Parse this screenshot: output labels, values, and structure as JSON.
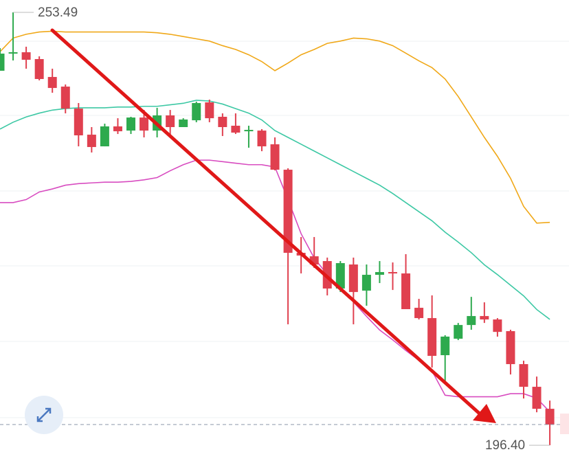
{
  "chart_data": {
    "type": "candlestick",
    "categories": [
      null,
      null,
      null,
      null,
      null,
      null,
      null,
      null,
      null,
      null,
      null,
      null,
      null,
      null,
      null,
      null,
      null,
      null,
      null,
      null,
      null,
      null,
      null,
      null,
      null,
      null,
      null,
      null,
      null,
      null,
      null,
      null,
      null,
      null,
      null,
      null,
      null,
      null,
      null,
      null,
      null,
      null,
      null
    ],
    "open": [
      245.79,
      248.14,
      248.23,
      247.33,
      244.97,
      243.7,
      240.8,
      237.36,
      235.82,
      238.45,
      237.9,
      239.62,
      237.9,
      239.9,
      238.36,
      239.26,
      241.62,
      239.72,
      238.54,
      237.81,
      237.9,
      236.09,
      232.74,
      221.78,
      221.32,
      220.69,
      217.07,
      220.24,
      216.79,
      218.88,
      219.24,
      219.06,
      214.53,
      213.17,
      208.28,
      210.45,
      212.26,
      213.44,
      212.99,
      211.45,
      207.1,
      204.11,
      201.21
    ],
    "high": [
      248.78,
      253.49,
      248.96,
      247.69,
      246.06,
      243.98,
      241.53,
      238.36,
      238.81,
      239.53,
      239.72,
      240.62,
      240.9,
      240.62,
      239.53,
      241.71,
      241.98,
      240.17,
      240.17,
      238.54,
      238.09,
      237.0,
      232.92,
      223.86,
      223.86,
      221.15,
      220.69,
      221.15,
      220.24,
      220.69,
      220.51,
      221.6,
      215.71,
      216.16,
      210.91,
      212.53,
      215.97,
      215.25,
      213.17,
      211.63,
      207.55,
      205.46,
      202.29
    ],
    "low": [
      245.79,
      247.15,
      246.06,
      244.52,
      242.89,
      240.17,
      235.82,
      235.01,
      235.82,
      237.45,
      237.45,
      237.0,
      237.0,
      237.36,
      238.36,
      239.0,
      239.0,
      237.18,
      237.45,
      235.64,
      235.18,
      232.65,
      212.35,
      219.06,
      219.79,
      216.16,
      216.61,
      212.35,
      214.8,
      217.79,
      216.88,
      214.35,
      212.99,
      206.65,
      204.83,
      210.27,
      211.63,
      212.53,
      210.72,
      205.74,
      202.57,
      200.75,
      196.4
    ],
    "close": [
      248.05,
      248.23,
      247.24,
      244.7,
      243.52,
      240.8,
      237.27,
      235.73,
      238.45,
      237.81,
      239.62,
      237.9,
      239.9,
      238.36,
      239.36,
      241.53,
      239.53,
      238.36,
      237.63,
      237.99,
      235.82,
      232.74,
      221.78,
      221.42,
      220.24,
      217.07,
      220.42,
      216.61,
      218.88,
      219.24,
      219.06,
      214.35,
      213.17,
      208.19,
      210.73,
      212.26,
      213.44,
      212.99,
      211.35,
      207.1,
      204.11,
      201.21,
      199.13
    ],
    "up_color": "#2eaa4e",
    "down_color": "#e0404f",
    "lines": [
      {
        "color": "#f0a818",
        "values": [
          248.3,
          250.1,
          250.6,
          250.9,
          251.0,
          250.9,
          250.9,
          250.9,
          250.9,
          250.9,
          250.9,
          250.9,
          250.8,
          250.6,
          250.3,
          250.0,
          249.7,
          249.1,
          248.6,
          247.9,
          247.0,
          245.8,
          246.8,
          247.9,
          248.6,
          249.4,
          249.7,
          250.1,
          250.0,
          249.7,
          249.1,
          248.1,
          247.1,
          246.2,
          244.7,
          242.4,
          239.7,
          237.0,
          234.5,
          231.6,
          227.9,
          225.7,
          225.8
        ]
      },
      {
        "color": "#3cc8a4",
        "values": [
          238.1,
          239.0,
          239.7,
          240.2,
          240.6,
          240.8,
          240.9,
          240.9,
          240.9,
          241.0,
          241.0,
          241.1,
          241.1,
          241.3,
          241.5,
          241.9,
          241.8,
          241.4,
          240.8,
          240.2,
          239.3,
          237.9,
          237.0,
          236.1,
          235.2,
          234.3,
          233.4,
          232.5,
          231.6,
          230.7,
          229.6,
          228.4,
          227.2,
          226.0,
          224.5,
          223.2,
          221.8,
          220.2,
          218.9,
          217.5,
          216.1,
          214.3,
          213.0
        ]
      },
      {
        "color": "#d84cc0",
        "values": [
          228.4,
          228.4,
          228.8,
          229.8,
          230.2,
          230.7,
          230.9,
          231.0,
          231.1,
          231.1,
          231.2,
          231.4,
          231.7,
          232.6,
          233.4,
          234.0,
          234.0,
          233.8,
          233.6,
          233.4,
          233.4,
          233.1,
          228.8,
          224.3,
          221.1,
          218.9,
          217.1,
          215.3,
          213.4,
          211.6,
          210.3,
          208.9,
          207.6,
          206.2,
          203.0,
          202.8,
          202.8,
          202.8,
          202.8,
          203.2,
          203.2,
          202.6,
          200.8
        ]
      }
    ],
    "max_label": "253.49",
    "min_label": "196.40",
    "ylim": [
      194.06,
      255.12
    ]
  }
}
